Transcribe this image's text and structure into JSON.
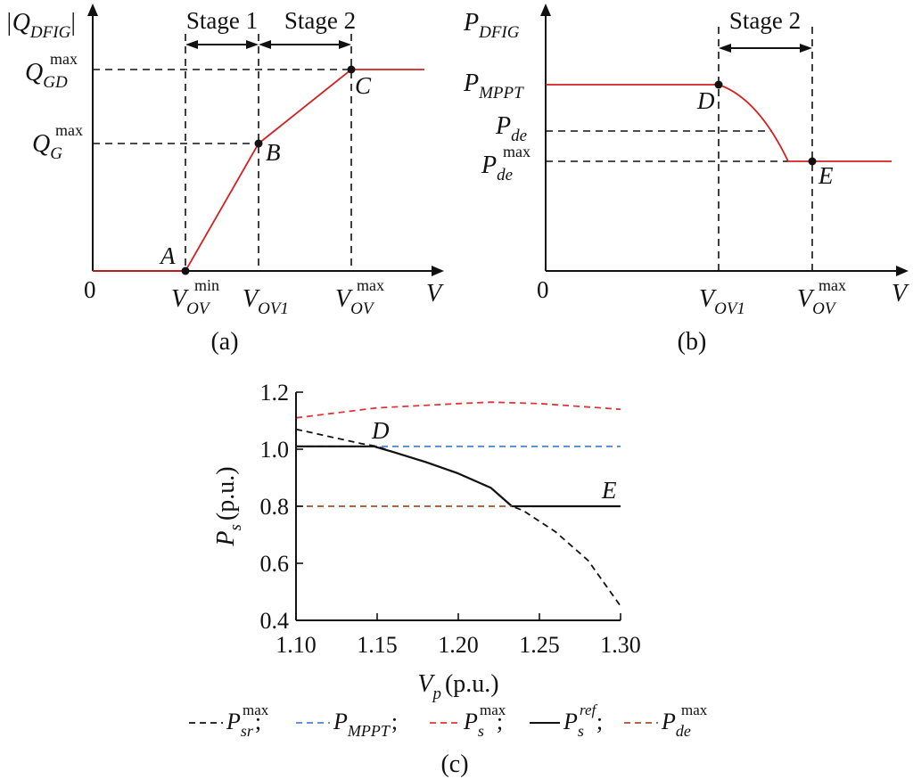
{
  "colors": {
    "axis": "#111111",
    "red_curve": "#d42020",
    "psr_max": "#111111",
    "p_mppt": "#4a86c8",
    "ps_max": "#e03535",
    "ps_ref": "#111111",
    "pde_max": "#a0522d"
  },
  "panel_a": {
    "caption": "(a)",
    "y_label": "|Q",
    "y_label_sub": "DFIG",
    "y_label_end": "|",
    "x_label": "V",
    "origin": "0",
    "stage1": "Stage 1",
    "stage2": "Stage 2",
    "q_gd_main": "Q",
    "q_gd_sub": "GD",
    "q_gd_sup": "max",
    "q_g_main": "Q",
    "q_g_sub": "G",
    "q_g_sup": "max",
    "v_ov_min_main": "V",
    "v_ov_min_sub": "OV",
    "v_ov_min_sup": "min",
    "v_ov1_main": "V",
    "v_ov1_sub": "OV1",
    "v_ov_max_main": "V",
    "v_ov_max_sub": "OV",
    "v_ov_max_sup": "max",
    "pt_a": "A",
    "pt_b": "B",
    "pt_c": "C"
  },
  "panel_b": {
    "caption": "(b)",
    "y_label": "P",
    "y_label_sub": "DFIG",
    "x_label": "V",
    "origin": "0",
    "stage2": "Stage 2",
    "p_mppt_main": "P",
    "p_mppt_sub": "MPPT",
    "p_de_main": "P",
    "p_de_sub": "de",
    "p_de_max_main": "P",
    "p_de_max_sub": "de",
    "p_de_max_sup": "max",
    "v_ov1_main": "V",
    "v_ov1_sub": "OV1",
    "v_ov_max_main": "V",
    "v_ov_max_sub": "OV",
    "v_ov_max_sup": "max",
    "pt_d": "D",
    "pt_e": "E"
  },
  "panel_c": {
    "caption": "(c)",
    "pt_d": "D",
    "pt_e": "E",
    "legend": {
      "psr_main": "P",
      "psr_sub": "sr",
      "psr_sup": "max",
      "mppt_main": "P",
      "mppt_sub": "MPPT",
      "ps_main": "P",
      "ps_sub": "s",
      "ps_sup": "max",
      "psref_main": "P",
      "psref_sub": "s",
      "psref_sup": "ref",
      "pde_main": "P",
      "pde_sub": "de",
      "pde_sup": "max",
      "sep": ";"
    }
  },
  "chart_data": [
    {
      "type": "line",
      "title": "",
      "note": "Schematic: reactive power |Q_DFIG| versus voltage V",
      "series": [
        {
          "name": "|Q_DFIG|",
          "x_labels": [
            "0",
            "V_OV^min",
            "V_OV1",
            "V_OV^max",
            "V"
          ],
          "shape": "zero until V_OV^min (A), rises to Q_G^max at V_OV1 (B), rises to Q_GD^max at V_OV^max (C), then flat"
        }
      ]
    },
    {
      "type": "line",
      "title": "",
      "note": "Schematic: active power P_DFIG versus voltage V",
      "series": [
        {
          "name": "P_DFIG",
          "shape": "flat at P_MPPT until V_OV1 (D), decreases through P_de, flat at P_de^max from V_OV^max (E)"
        }
      ]
    },
    {
      "type": "line",
      "xlabel": "V_p (p.u.)",
      "ylabel": "P_s (p.u.)",
      "xlim": [
        1.1,
        1.3
      ],
      "ylim": [
        0.4,
        1.2
      ],
      "x_ticks": [
        "1.10",
        "1.15",
        "1.20",
        "1.25",
        "1.30"
      ],
      "y_ticks": [
        "0.4",
        "0.6",
        "0.8",
        "1.0",
        "1.2"
      ],
      "series": [
        {
          "name": "P_sr^max",
          "style": "dashed",
          "color": "#111111",
          "x": [
            1.1,
            1.12,
            1.14,
            1.15,
            1.16,
            1.18,
            1.2,
            1.22,
            1.233,
            1.24,
            1.26,
            1.28,
            1.3
          ],
          "y": [
            1.07,
            1.045,
            1.02,
            1.01,
            0.99,
            0.955,
            0.915,
            0.865,
            0.8,
            0.785,
            0.71,
            0.61,
            0.45
          ]
        },
        {
          "name": "P_MPPT",
          "style": "dashed",
          "color": "#4a86c8",
          "x": [
            1.1,
            1.3
          ],
          "y": [
            1.01,
            1.01
          ]
        },
        {
          "name": "P_s^max",
          "style": "dashed",
          "color": "#e03535",
          "x": [
            1.1,
            1.15,
            1.2,
            1.22,
            1.25,
            1.3
          ],
          "y": [
            1.11,
            1.145,
            1.16,
            1.165,
            1.16,
            1.14
          ]
        },
        {
          "name": "P_s^ref",
          "style": "solid",
          "color": "#111111",
          "x": [
            1.1,
            1.148,
            1.16,
            1.18,
            1.2,
            1.22,
            1.233,
            1.3
          ],
          "y": [
            1.01,
            1.01,
            0.99,
            0.955,
            0.915,
            0.865,
            0.8,
            0.8
          ]
        },
        {
          "name": "P_de^max",
          "style": "dashed",
          "color": "#a0522d",
          "x": [
            1.1,
            1.233
          ],
          "y": [
            0.8,
            0.8
          ]
        }
      ],
      "annotations": [
        {
          "text": "D",
          "x": 1.15,
          "y": 1.01
        },
        {
          "text": "E",
          "x": 1.28,
          "y": 0.8
        }
      ]
    }
  ]
}
